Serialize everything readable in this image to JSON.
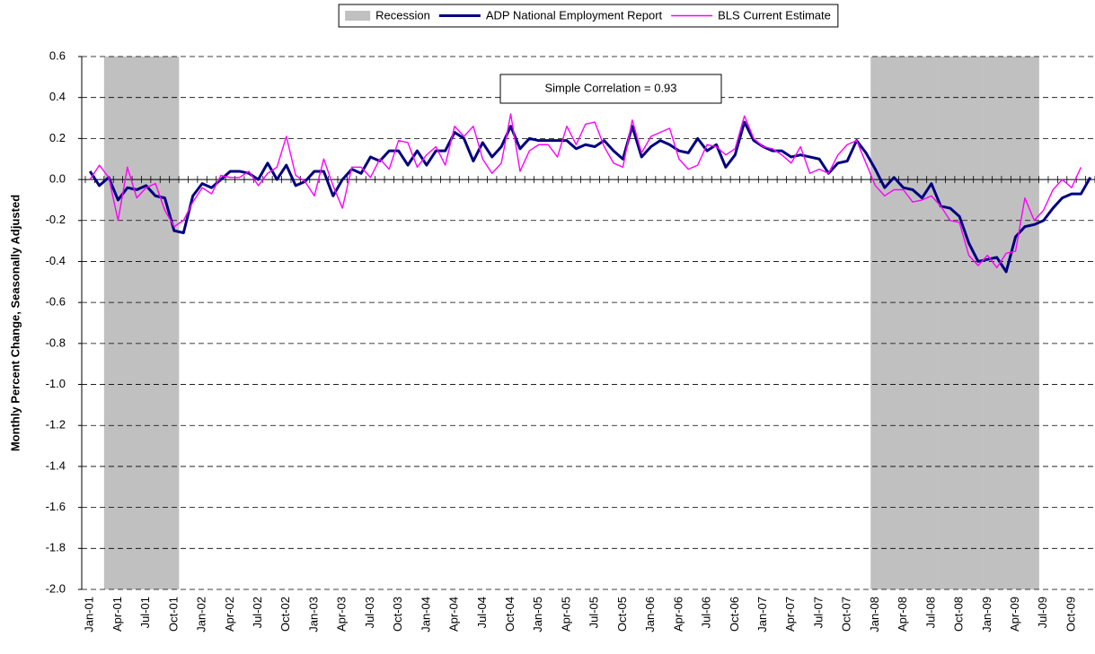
{
  "chart_data": {
    "type": "line",
    "y_label": "Monthly Percent Change, Seasonally Adjusted",
    "annotation": "Simple Correlation = 0.93",
    "categories": [
      "Jan-01",
      null,
      null,
      "Apr-01",
      null,
      null,
      "Jul-01",
      null,
      null,
      "Oct-01",
      null,
      null,
      "Jan-02",
      null,
      null,
      "Apr-02",
      null,
      null,
      "Jul-02",
      null,
      null,
      "Oct-02",
      null,
      null,
      "Jan-03",
      null,
      null,
      "Apr-03",
      null,
      null,
      "Jul-03",
      null,
      null,
      "Oct-03",
      null,
      null,
      "Jan-04",
      null,
      null,
      "Apr-04",
      null,
      null,
      "Jul-04",
      null,
      null,
      "Oct-04",
      null,
      null,
      "Jan-05",
      null,
      null,
      "Apr-05",
      null,
      null,
      "Jul-05",
      null,
      null,
      "Oct-05",
      null,
      null,
      "Jan-06",
      null,
      null,
      "Apr-06",
      null,
      null,
      "Jul-06",
      null,
      null,
      "Oct-06",
      null,
      null,
      "Jan-07",
      null,
      null,
      "Apr-07",
      null,
      null,
      "Jul-07",
      null,
      null,
      "Oct-07",
      null,
      null,
      "Jan-08",
      null,
      null,
      "Apr-08",
      null,
      null,
      "Jul-08",
      null,
      null,
      "Oct-08",
      null,
      null,
      "Jan-09",
      null,
      null,
      "Apr-09",
      null,
      null,
      "Jul-09",
      null,
      null,
      "Oct-09",
      null,
      null
    ],
    "series": [
      {
        "name": "Recession",
        "color": "#c0c0c0",
        "type": "bar",
        "values": [
          null,
          null,
          0.6,
          0.6,
          0.6,
          0.6,
          0.6,
          0.6,
          0.6,
          0.6,
          null,
          null,
          null,
          null,
          null,
          null,
          null,
          null,
          null,
          null,
          null,
          null,
          null,
          null,
          null,
          null,
          null,
          null,
          null,
          null,
          null,
          null,
          null,
          null,
          null,
          null,
          null,
          null,
          null,
          null,
          null,
          null,
          null,
          null,
          null,
          null,
          null,
          null,
          null,
          null,
          null,
          null,
          null,
          null,
          null,
          null,
          null,
          null,
          null,
          null,
          null,
          null,
          null,
          null,
          null,
          null,
          null,
          null,
          null,
          null,
          null,
          null,
          null,
          null,
          null,
          null,
          null,
          null,
          null,
          null,
          null,
          null,
          null,
          null,
          0.6,
          0.6,
          0.6,
          0.6,
          0.6,
          0.6,
          0.6,
          0.6,
          0.6,
          0.6,
          0.6,
          0.6,
          0.6,
          0.6,
          0.6,
          0.6,
          0.6,
          0.6,
          null,
          null,
          null,
          null,
          null,
          null
        ]
      },
      {
        "name": "ADP National Employment Report",
        "color": "#000080",
        "type": "line",
        "values": [
          0.04,
          -0.03,
          0.01,
          -0.1,
          -0.04,
          -0.05,
          -0.03,
          -0.08,
          -0.09,
          -0.25,
          -0.26,
          -0.08,
          -0.02,
          -0.04,
          0.0,
          0.04,
          0.04,
          0.03,
          0.0,
          0.08,
          0.0,
          0.07,
          -0.03,
          -0.01,
          0.04,
          0.04,
          -0.08,
          0.0,
          0.05,
          0.03,
          0.11,
          0.09,
          0.14,
          0.14,
          0.07,
          0.14,
          0.07,
          0.14,
          0.14,
          0.23,
          0.2,
          0.09,
          0.18,
          0.11,
          0.16,
          0.26,
          0.15,
          0.2,
          0.19,
          0.19,
          0.19,
          0.19,
          0.15,
          0.17,
          0.16,
          0.19,
          0.14,
          0.1,
          0.26,
          0.11,
          0.16,
          0.19,
          0.17,
          0.14,
          0.13,
          0.2,
          0.14,
          0.17,
          0.06,
          0.12,
          0.28,
          0.19,
          0.16,
          0.14,
          0.14,
          0.11,
          0.12,
          0.11,
          0.1,
          0.03,
          0.08,
          0.09,
          0.19,
          0.13,
          0.05,
          -0.04,
          0.01,
          -0.04,
          -0.05,
          -0.09,
          -0.02,
          -0.13,
          -0.14,
          -0.18,
          -0.31,
          -0.4,
          -0.39,
          -0.38,
          -0.45,
          -0.28,
          -0.23,
          -0.22,
          -0.2,
          -0.14,
          -0.09,
          -0.07,
          -0.07,
          0.01
        ]
      },
      {
        "name": "BLS Current Estimate",
        "color": "#ff00ff",
        "type": "line",
        "values": [
          0.0,
          0.07,
          0.01,
          -0.2,
          0.06,
          -0.09,
          -0.04,
          -0.02,
          -0.15,
          -0.23,
          -0.2,
          -0.11,
          -0.04,
          -0.07,
          0.02,
          0.01,
          0.01,
          0.04,
          -0.03,
          0.03,
          0.06,
          0.21,
          0.02,
          -0.01,
          -0.08,
          0.1,
          -0.03,
          -0.14,
          0.06,
          0.06,
          0.01,
          0.1,
          0.05,
          0.19,
          0.18,
          0.06,
          0.12,
          0.16,
          0.07,
          0.26,
          0.21,
          0.26,
          0.1,
          0.03,
          0.08,
          0.32,
          0.04,
          0.14,
          0.17,
          0.17,
          0.11,
          0.26,
          0.17,
          0.27,
          0.28,
          0.16,
          0.08,
          0.06,
          0.29,
          0.13,
          0.21,
          0.23,
          0.25,
          0.1,
          0.05,
          0.07,
          0.17,
          0.16,
          0.12,
          0.15,
          0.31,
          0.2,
          0.16,
          0.15,
          0.12,
          0.08,
          0.16,
          0.03,
          0.05,
          0.03,
          0.12,
          0.17,
          0.19,
          0.08,
          -0.03,
          -0.08,
          -0.05,
          -0.05,
          -0.11,
          -0.1,
          -0.08,
          -0.13,
          -0.2,
          -0.21,
          -0.37,
          -0.42,
          -0.37,
          -0.43,
          -0.36,
          -0.35,
          -0.09,
          -0.2,
          -0.15,
          -0.05,
          0.0,
          -0.04,
          0.06,
          null
        ]
      }
    ],
    "ylim": [
      -2.0,
      0.6
    ],
    "yticks": [
      {
        "value": -2.0,
        "label": "-2.0"
      },
      -1.8,
      -1.6,
      -1.4,
      -1.2,
      {
        "value": -1.0,
        "label": "-1.0"
      },
      -0.8,
      -0.6,
      -0.4,
      -0.2,
      {
        "value": 0,
        "label": "0.0"
      },
      0.2,
      0.4,
      0.6
    ],
    "grid": true,
    "legend": "top"
  }
}
